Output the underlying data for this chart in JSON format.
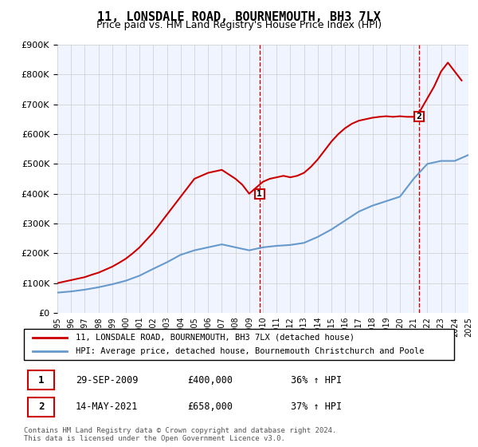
{
  "title": "11, LONSDALE ROAD, BOURNEMOUTH, BH3 7LX",
  "subtitle": "Price paid vs. HM Land Registry's House Price Index (HPI)",
  "ylabel_ticks": [
    "£0",
    "£100K",
    "£200K",
    "£300K",
    "£400K",
    "£500K",
    "£600K",
    "£700K",
    "£800K",
    "£900K"
  ],
  "ylim": [
    0,
    900000
  ],
  "yticks": [
    0,
    100000,
    200000,
    300000,
    400000,
    500000,
    600000,
    700000,
    800000,
    900000
  ],
  "hpi_years": [
    1995,
    1996,
    1997,
    1998,
    1999,
    2000,
    2001,
    2002,
    2003,
    2004,
    2005,
    2006,
    2007,
    2008,
    2009,
    2010,
    2011,
    2012,
    2013,
    2014,
    2015,
    2016,
    2017,
    2018,
    2019,
    2020,
    2021,
    2022,
    2023,
    2024,
    2025
  ],
  "hpi_values": [
    68000,
    72000,
    78000,
    86000,
    96000,
    108000,
    125000,
    148000,
    170000,
    195000,
    210000,
    220000,
    230000,
    220000,
    210000,
    220000,
    225000,
    228000,
    235000,
    255000,
    280000,
    310000,
    340000,
    360000,
    375000,
    390000,
    450000,
    500000,
    510000,
    510000,
    530000
  ],
  "property_years": [
    1995.0,
    1995.5,
    1996.0,
    1996.5,
    1997.0,
    1997.5,
    1998.0,
    1998.5,
    1999.0,
    1999.5,
    2000.0,
    2000.5,
    2001.0,
    2001.5,
    2002.0,
    2002.5,
    2003.0,
    2003.5,
    2004.0,
    2004.5,
    2005.0,
    2005.5,
    2006.0,
    2006.5,
    2007.0,
    2007.5,
    2008.0,
    2008.5,
    2009.0,
    2009.5,
    2010.0,
    2010.5,
    2011.0,
    2011.5,
    2012.0,
    2012.5,
    2013.0,
    2013.5,
    2014.0,
    2014.5,
    2015.0,
    2015.5,
    2016.0,
    2016.5,
    2017.0,
    2017.5,
    2018.0,
    2018.5,
    2019.0,
    2019.5,
    2020.0,
    2020.5,
    2021.0,
    2021.5,
    2022.0,
    2022.5,
    2023.0,
    2023.5,
    2024.0,
    2024.5
  ],
  "property_values": [
    100000,
    105000,
    110000,
    115000,
    120000,
    128000,
    135000,
    145000,
    155000,
    168000,
    182000,
    200000,
    220000,
    245000,
    270000,
    300000,
    330000,
    360000,
    390000,
    420000,
    450000,
    460000,
    470000,
    475000,
    480000,
    465000,
    450000,
    430000,
    400000,
    420000,
    440000,
    450000,
    455000,
    460000,
    455000,
    460000,
    470000,
    490000,
    515000,
    545000,
    575000,
    600000,
    620000,
    635000,
    645000,
    650000,
    655000,
    658000,
    660000,
    658000,
    660000,
    658000,
    658000,
    680000,
    720000,
    760000,
    810000,
    840000,
    810000,
    780000
  ],
  "sale1_year": 2009.75,
  "sale1_value": 400000,
  "sale1_label": "1",
  "sale2_year": 2021.37,
  "sale2_value": 658000,
  "sale2_label": "2",
  "red_color": "#cc0000",
  "blue_color": "#6699cc",
  "vline_color": "#cc0000",
  "vline_style": "--",
  "legend_line1": "11, LONSDALE ROAD, BOURNEMOUTH, BH3 7LX (detached house)",
  "legend_line2": "HPI: Average price, detached house, Bournemouth Christchurch and Poole",
  "ann1_num": "1",
  "ann1_date": "29-SEP-2009",
  "ann1_price": "£400,000",
  "ann1_hpi": "36% ↑ HPI",
  "ann2_num": "2",
  "ann2_date": "14-MAY-2021",
  "ann2_price": "£658,000",
  "ann2_hpi": "37% ↑ HPI",
  "footer": "Contains HM Land Registry data © Crown copyright and database right 2024.\nThis data is licensed under the Open Government Licence v3.0.",
  "bg_color": "#ffffff",
  "plot_bg_color": "#f0f4ff",
  "grid_color": "#cccccc"
}
